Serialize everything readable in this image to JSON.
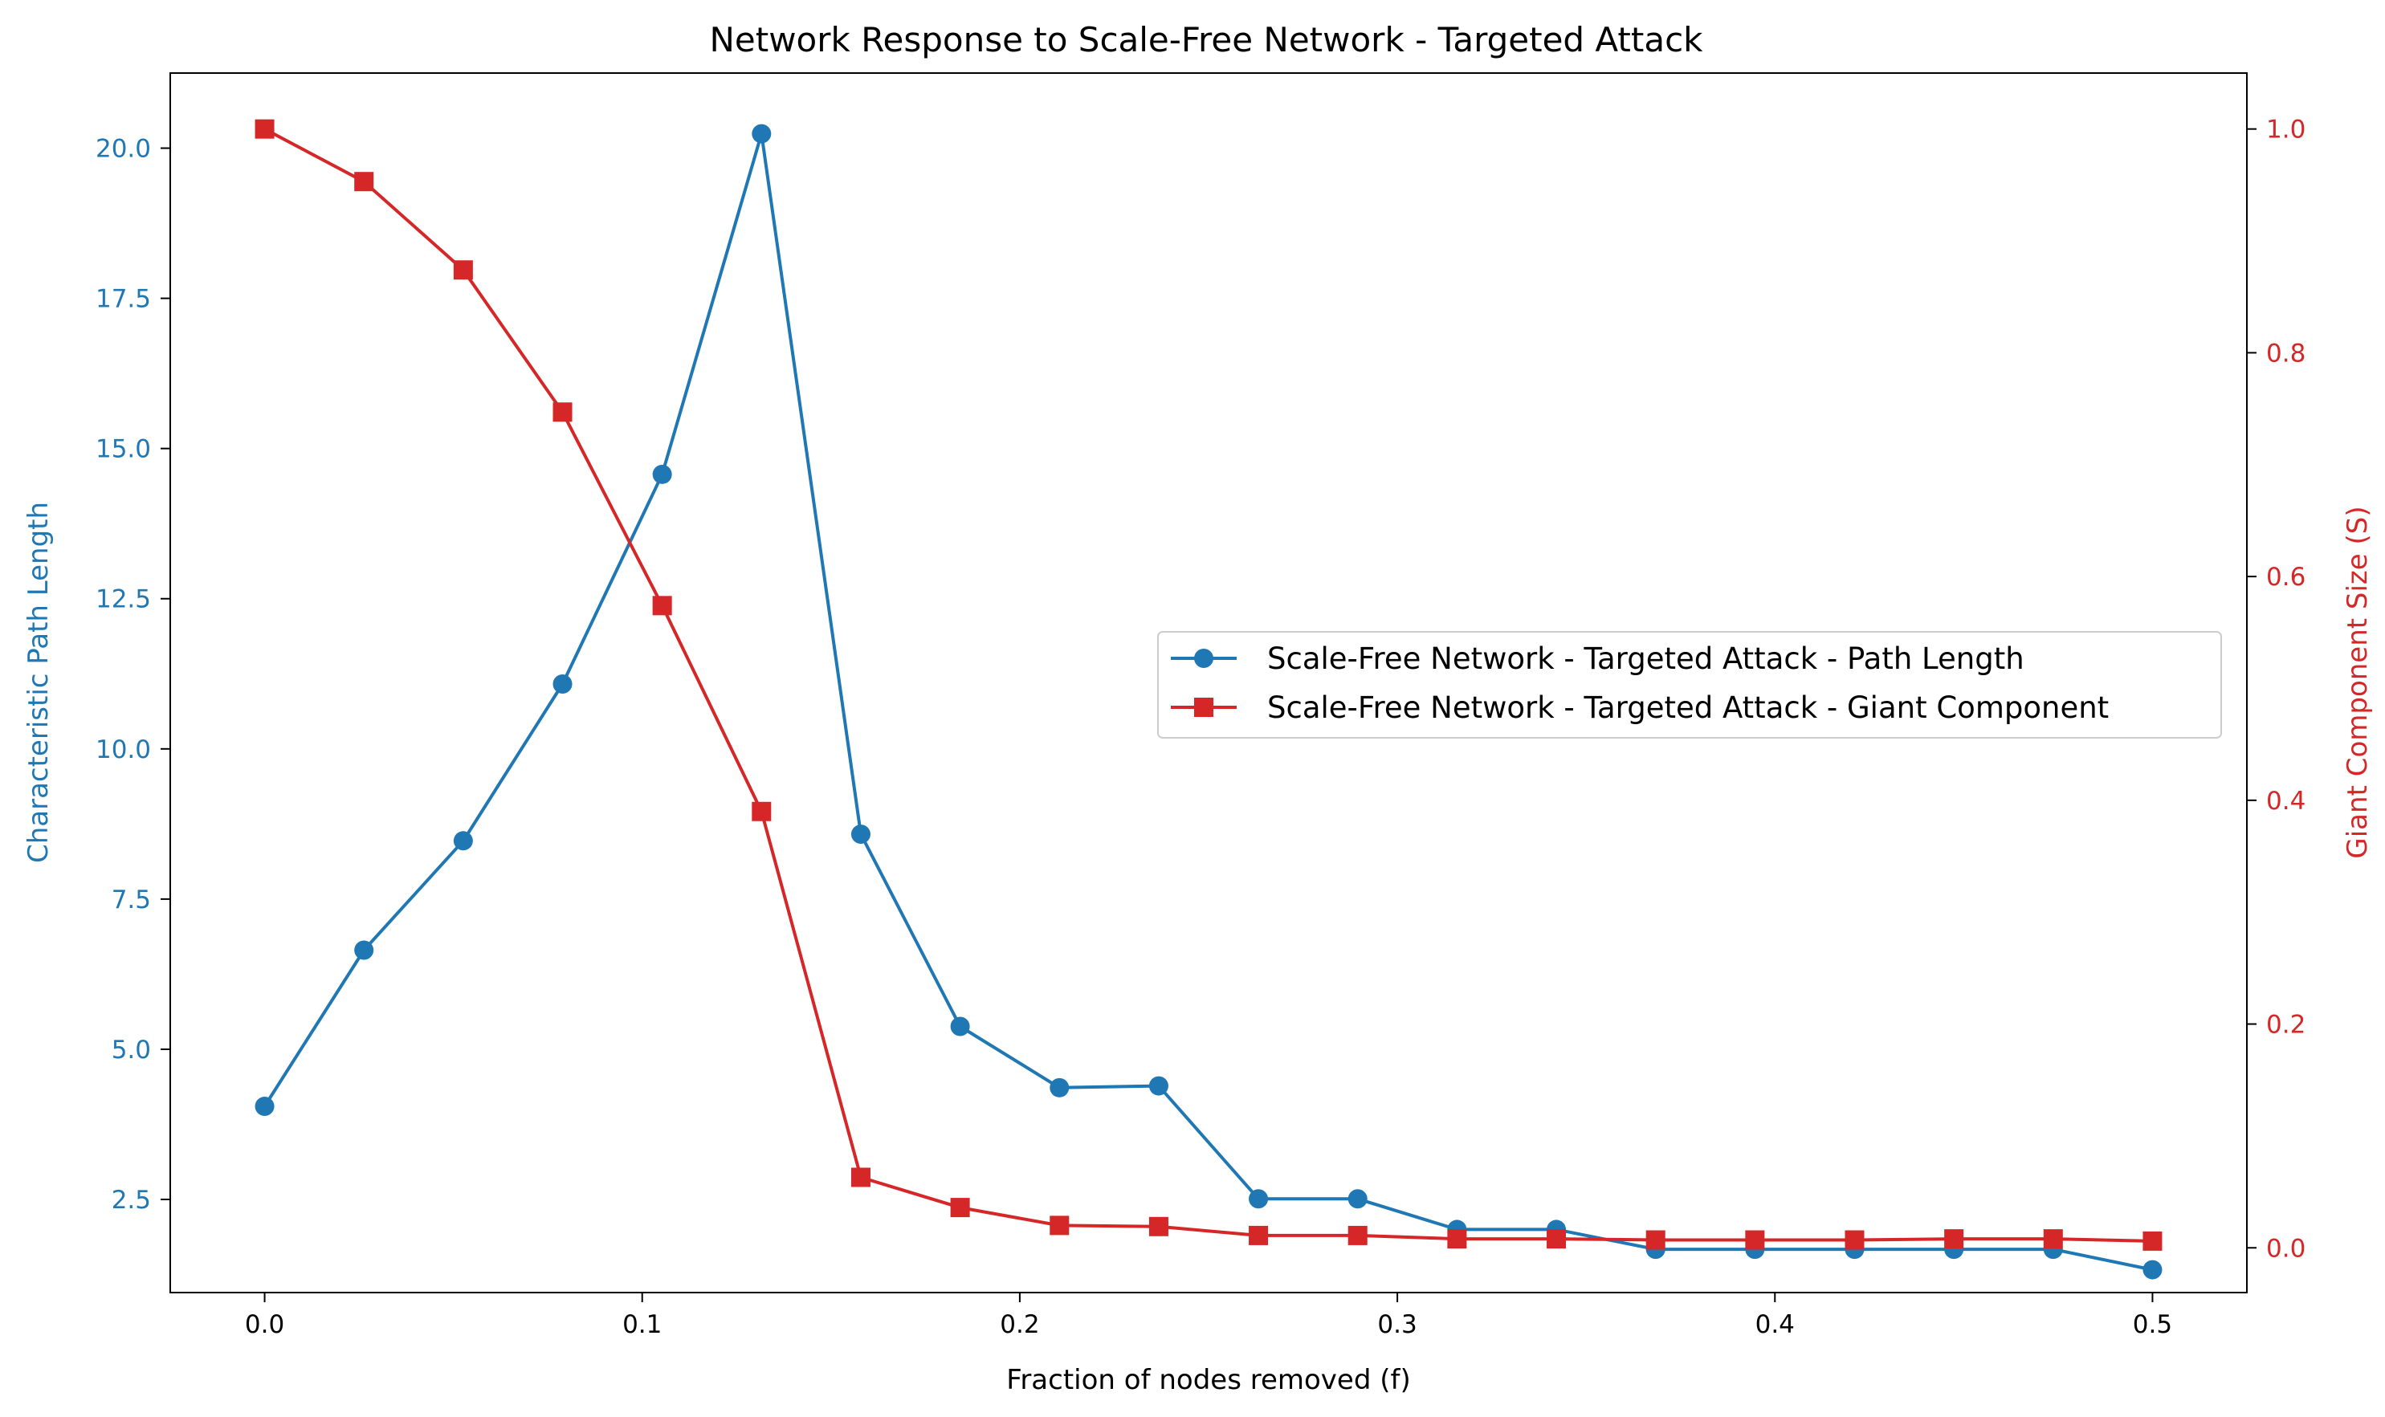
{
  "chart_data": {
    "type": "line",
    "title": "Network Response to Scale-Free Network - Targeted Attack",
    "xlabel": "Fraction of nodes removed (f)",
    "ylabel_left": "Characteristic Path Length",
    "ylabel_right": "Giant Component Size (S)",
    "xlim": [
      -0.025,
      0.525
    ],
    "ylim_left": [
      0.95,
      21.25
    ],
    "ylim_right": [
      -0.04,
      1.05
    ],
    "x_ticks": [
      "0.0",
      "0.1",
      "0.2",
      "0.3",
      "0.4",
      "0.5"
    ],
    "y_ticks_left": [
      "2.5",
      "5.0",
      "7.5",
      "10.0",
      "12.5",
      "15.0",
      "17.5",
      "20.0"
    ],
    "y_ticks_right": [
      "0.0",
      "0.2",
      "0.4",
      "0.6",
      "0.8",
      "1.0"
    ],
    "grid": false,
    "legend_position": "center-right",
    "x": [
      0.0,
      0.0263,
      0.0526,
      0.0789,
      0.1053,
      0.1316,
      0.1579,
      0.1842,
      0.2105,
      0.2368,
      0.2632,
      0.2895,
      0.3158,
      0.3421,
      0.3684,
      0.3947,
      0.4211,
      0.4474,
      0.4737,
      0.5
    ],
    "series": [
      {
        "name": "Scale-Free Network - Targeted Attack - Path Length",
        "axis": "left",
        "color": "#1f77b4",
        "marker": "circle",
        "values": [
          4.05,
          6.65,
          8.47,
          11.08,
          14.57,
          20.24,
          8.58,
          5.38,
          4.36,
          4.39,
          2.51,
          2.51,
          2.0,
          2.0,
          1.67,
          1.67,
          1.67,
          1.67,
          1.67,
          1.33
        ]
      },
      {
        "name": "Scale-Free Network - Targeted Attack - Giant Component",
        "axis": "right",
        "color": "#d62728",
        "marker": "square",
        "values": [
          1.0,
          0.953,
          0.874,
          0.747,
          0.574,
          0.39,
          0.063,
          0.036,
          0.02,
          0.019,
          0.011,
          0.011,
          0.008,
          0.008,
          0.007,
          0.007,
          0.007,
          0.008,
          0.008,
          0.006
        ]
      }
    ]
  }
}
